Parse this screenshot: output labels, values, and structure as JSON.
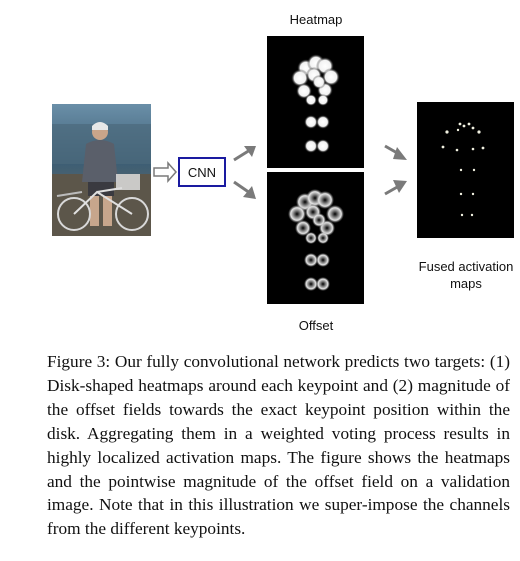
{
  "figure": {
    "heatmap_label": "Heatmap",
    "offset_label": "Offset",
    "cnn_label": "CNN",
    "fused_label_line1": "Fused activation",
    "fused_label_line2": "maps"
  },
  "caption": {
    "text": "Figure 3:  Our fully convolutional network predicts two targets: (1) Disk-shaped heatmaps around each keypoint and (2) magnitude of the offset fields towards the exact keypoint position within the disk.  Aggregating them in a weighted voting process results in highly localized activation maps. The figure shows the heatmaps and the pointwise magnitude of the offset field on a validation image.  Note that in this illustration we super-impose the channels from the different keypoints."
  },
  "colors": {
    "cnn_border": "#1a1aa0",
    "panel_bg": "#000000",
    "arrow": "#7a7a7a"
  }
}
